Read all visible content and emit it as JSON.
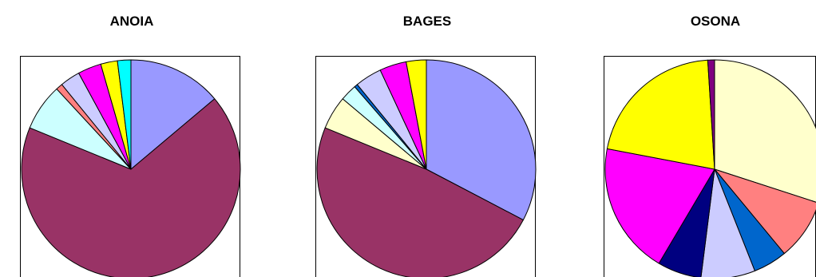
{
  "chart_data": [
    {
      "type": "pie",
      "title": "ANOIA",
      "slices": [
        {
          "value": 14.0,
          "color": "#9999ff"
        },
        {
          "value": 68.0,
          "color": "#993366"
        },
        {
          "value": 7.0,
          "color": "#ccffff"
        },
        {
          "value": 1.0,
          "color": "#ff8080"
        },
        {
          "value": 3.0,
          "color": "#ccccff"
        },
        {
          "value": 3.5,
          "color": "#ff00ff"
        },
        {
          "value": 2.5,
          "color": "#ffff00"
        },
        {
          "value": 2.0,
          "color": "#00ffff"
        }
      ]
    },
    {
      "type": "pie",
      "title": "BAGES",
      "slices": [
        {
          "value": 33.0,
          "color": "#9999ff"
        },
        {
          "value": 49.0,
          "color": "#993366"
        },
        {
          "value": 5.0,
          "color": "#ffffcc"
        },
        {
          "value": 2.5,
          "color": "#ccffff"
        },
        {
          "value": 0.5,
          "color": "#0066cc"
        },
        {
          "value": 4.0,
          "color": "#ccccff"
        },
        {
          "value": 4.0,
          "color": "#ff00ff"
        },
        {
          "value": 3.0,
          "color": "#ffff00"
        }
      ]
    },
    {
      "type": "pie",
      "title": "OSONA",
      "slices": [
        {
          "value": 30.0,
          "color": "#ffffcc"
        },
        {
          "value": 9.0,
          "color": "#ff8080"
        },
        {
          "value": 5.0,
          "color": "#0066cc"
        },
        {
          "value": 8.0,
          "color": "#ccccff"
        },
        {
          "value": 6.5,
          "color": "#000080"
        },
        {
          "value": 19.5,
          "color": "#ff00ff"
        },
        {
          "value": 21.0,
          "color": "#ffff00"
        },
        {
          "value": 1.0,
          "color": "#800080"
        }
      ]
    }
  ]
}
